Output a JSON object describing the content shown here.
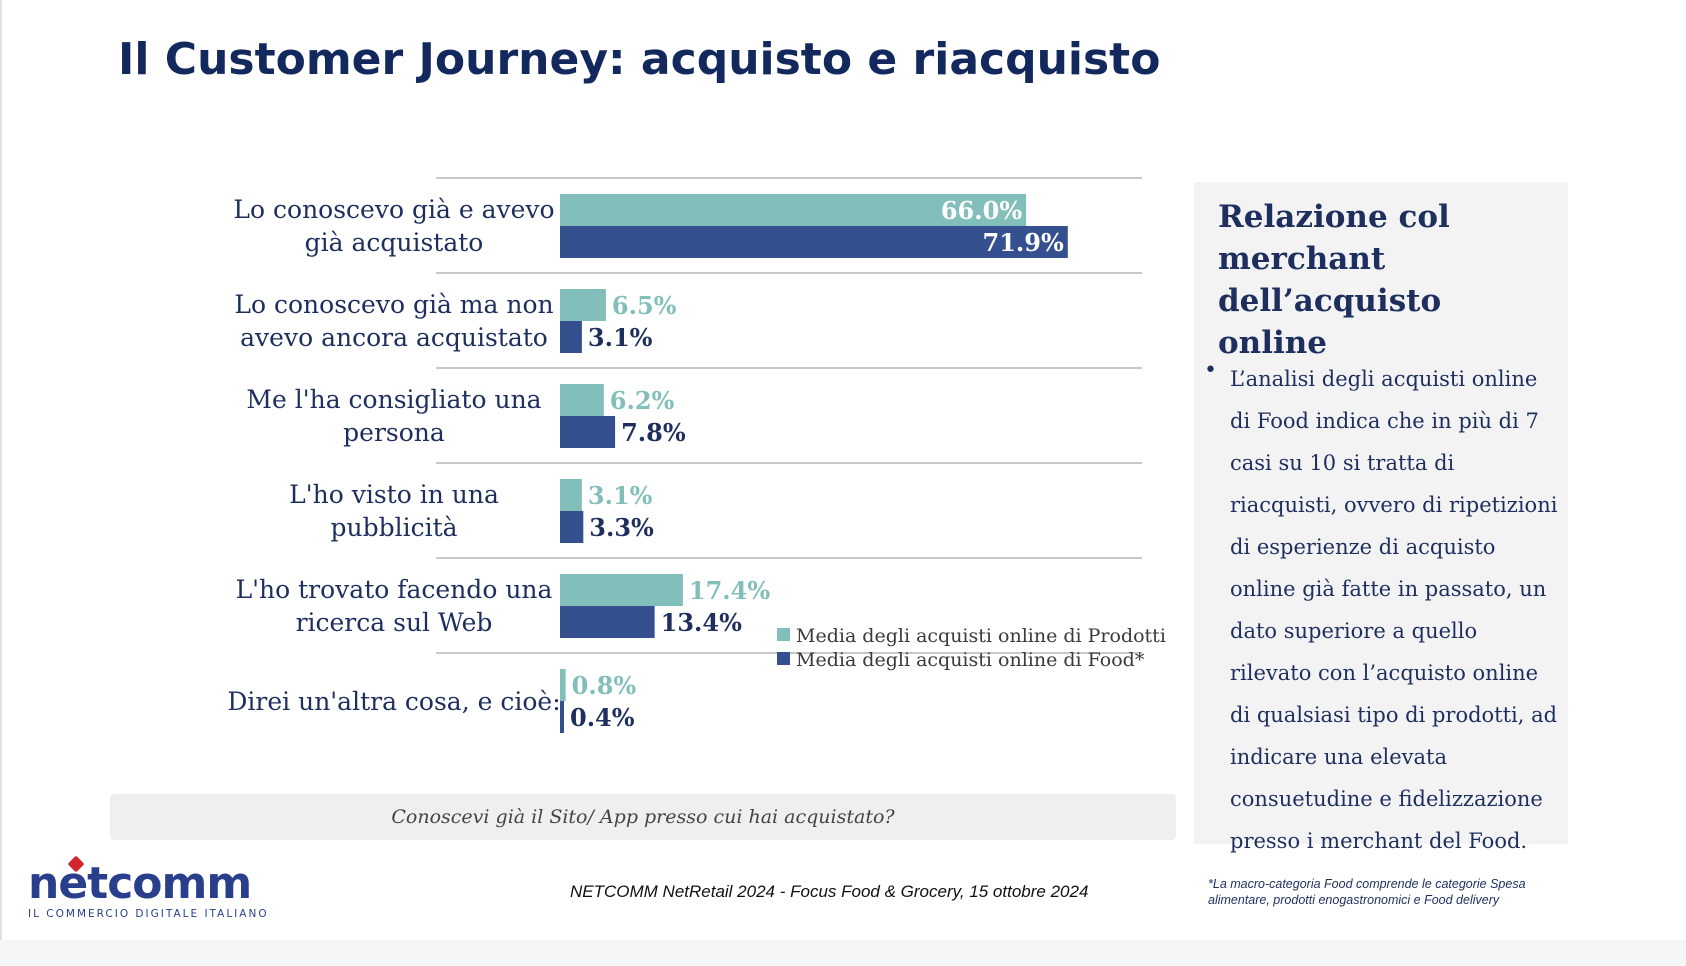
{
  "slide": {
    "title": "Il Customer Journey: acquisto e riacquisto",
    "caption": "Conoscevi già il Sito/ App presso cui hai acquistato?",
    "source": "NETCOMM NetRetail 2024 - Focus Food & Grocery, 15 ottobre  2024",
    "footnote": "*La macro-categoria Food comprende le categorie Spesa alimentare, prodotti enogastronomici e Food delivery"
  },
  "logo": {
    "word": "netcomm",
    "tagline": "IL COMMERCIO DIGITALE ITALIANO"
  },
  "side_panel": {
    "title": "Relazione col merchant dell’acquisto online",
    "bullet_symbol": "•",
    "body": "L’analisi degli acquisti online di Food indica che in più di 7 casi su 10 si tratta di riacquisti, ovvero di ripetizioni di esperienze di acquisto online già fatte in passato, un dato superiore a quello rilevato con l’acquisto online di qualsiasi tipo di prodotti, ad indicare una elevata consuetudine e fidelizzazione presso i merchant del Food."
  },
  "colors": {
    "prodotti": "#82bfba",
    "food": "#34508f",
    "title": "#13285c",
    "text": "#1e2f5e",
    "divider": "#c8c8c8"
  },
  "chart_data": {
    "type": "bar",
    "orientation": "horizontal",
    "categories": [
      [
        "Lo conoscevo già e avevo",
        "già acquistato"
      ],
      [
        "Lo conoscevo già ma non",
        "avevo ancora acquistato"
      ],
      [
        "Me l'ha consigliato una",
        "persona"
      ],
      [
        "L'ho visto in una",
        "pubblicità"
      ],
      [
        "L'ho trovato facendo una",
        "ricerca sul Web"
      ],
      [
        "Direi un'altra cosa, e cioè:"
      ]
    ],
    "series": [
      {
        "name": "Media degli acquisti online di Prodotti",
        "values": [
          66.0,
          6.5,
          6.2,
          3.1,
          17.4,
          0.8
        ],
        "labels": [
          "66.0%",
          "6.5%",
          "6.2%",
          "3.1%",
          "17.4%",
          "0.8%"
        ]
      },
      {
        "name": "Media degli acquisti online di Food*",
        "values": [
          71.9,
          3.1,
          7.8,
          3.3,
          13.4,
          0.4
        ],
        "labels": [
          "71.9%",
          "3.1%",
          "7.8%",
          "3.3%",
          "13.4%",
          "0.4%"
        ]
      }
    ],
    "xlim": [
      0,
      80
    ],
    "legend_position": "bottom-right",
    "grid": false
  }
}
